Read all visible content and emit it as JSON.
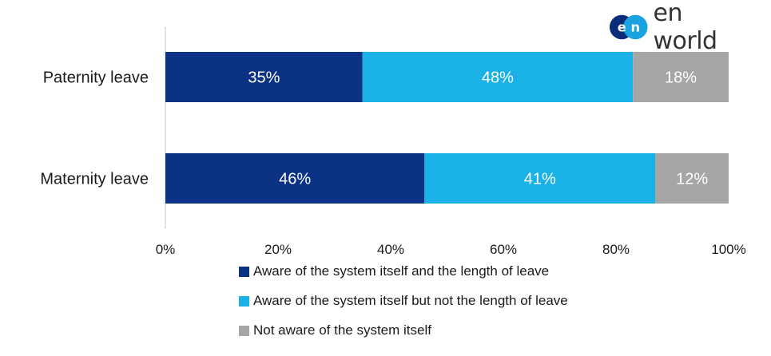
{
  "logo": {
    "text": "en world",
    "mark_text": "en",
    "mark_colors": [
      "#0a2d7a",
      "#1aa3e0"
    ]
  },
  "chart_data": {
    "type": "bar",
    "orientation": "horizontal",
    "stacked": true,
    "categories": [
      "Paternity leave",
      "Maternity leave"
    ],
    "series": [
      {
        "name": "Aware of the system itself and the length of leave",
        "color": "#0c3286",
        "values": [
          35,
          46
        ],
        "labels": [
          "35%",
          "46%"
        ]
      },
      {
        "name": "Aware of the system itself but not the length of leave",
        "color": "#1ab1e6",
        "values": [
          48,
          41
        ],
        "labels": [
          "48%",
          "41%"
        ]
      },
      {
        "name": "Not aware of the system itself",
        "color": "#a6a6a6",
        "values": [
          18,
          12
        ],
        "labels": [
          "18%",
          "12%"
        ]
      }
    ],
    "xlim": [
      0,
      100
    ],
    "xticks": [
      "0%",
      "20%",
      "40%",
      "60%",
      "80%",
      "100%"
    ],
    "grid": false,
    "legend_position": "bottom"
  }
}
